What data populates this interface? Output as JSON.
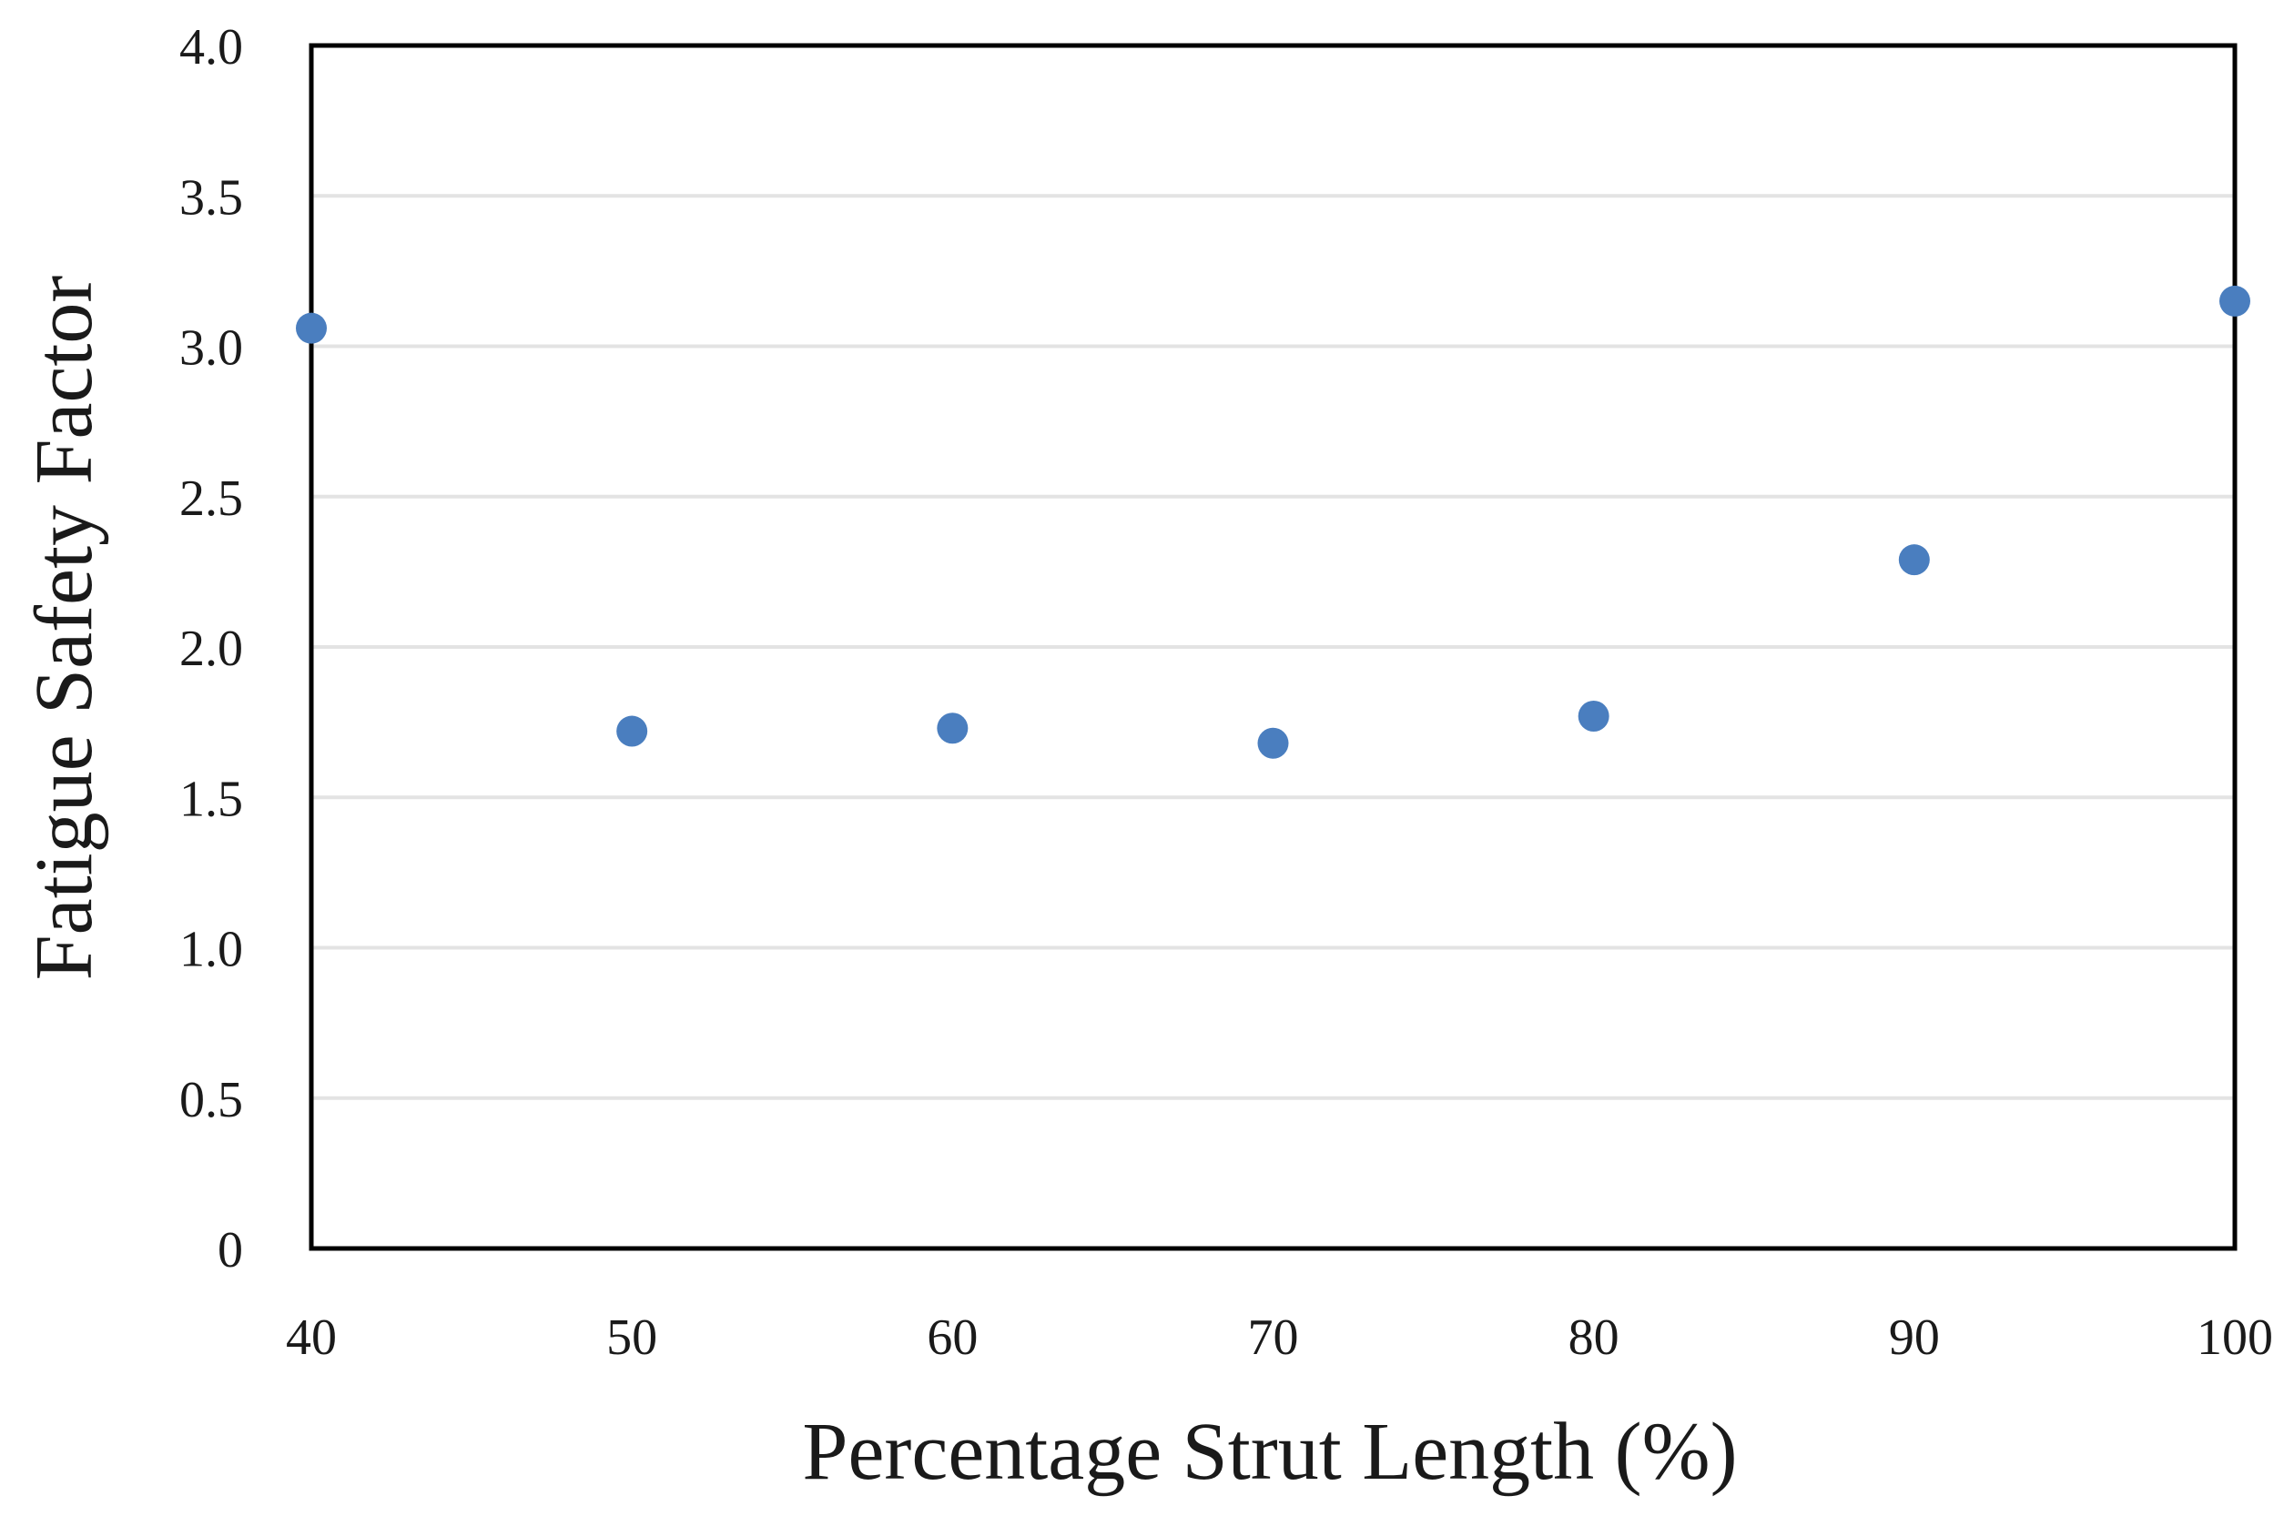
{
  "chart_data": {
    "type": "scatter",
    "title": "",
    "xlabel": "Percentage Strut Length (%)",
    "ylabel": "Fatigue Safety Factor",
    "xlim": [
      40,
      100
    ],
    "ylim": [
      0,
      4.0
    ],
    "x_ticks": [
      "40",
      "50",
      "60",
      "70",
      "80",
      "90",
      "100"
    ],
    "y_ticks": [
      "0",
      "0.5",
      "1.0",
      "1.5",
      "2.0",
      "2.5",
      "3.0",
      "3.5",
      "4.0"
    ],
    "grid": "horizontal",
    "legend": "none",
    "marker_color": "#4a7ebf",
    "series": [
      {
        "x": [
          40,
          50,
          60,
          70,
          80,
          90,
          100
        ],
        "y": [
          3.06,
          1.72,
          1.73,
          1.68,
          1.77,
          2.29,
          3.15
        ]
      }
    ]
  }
}
